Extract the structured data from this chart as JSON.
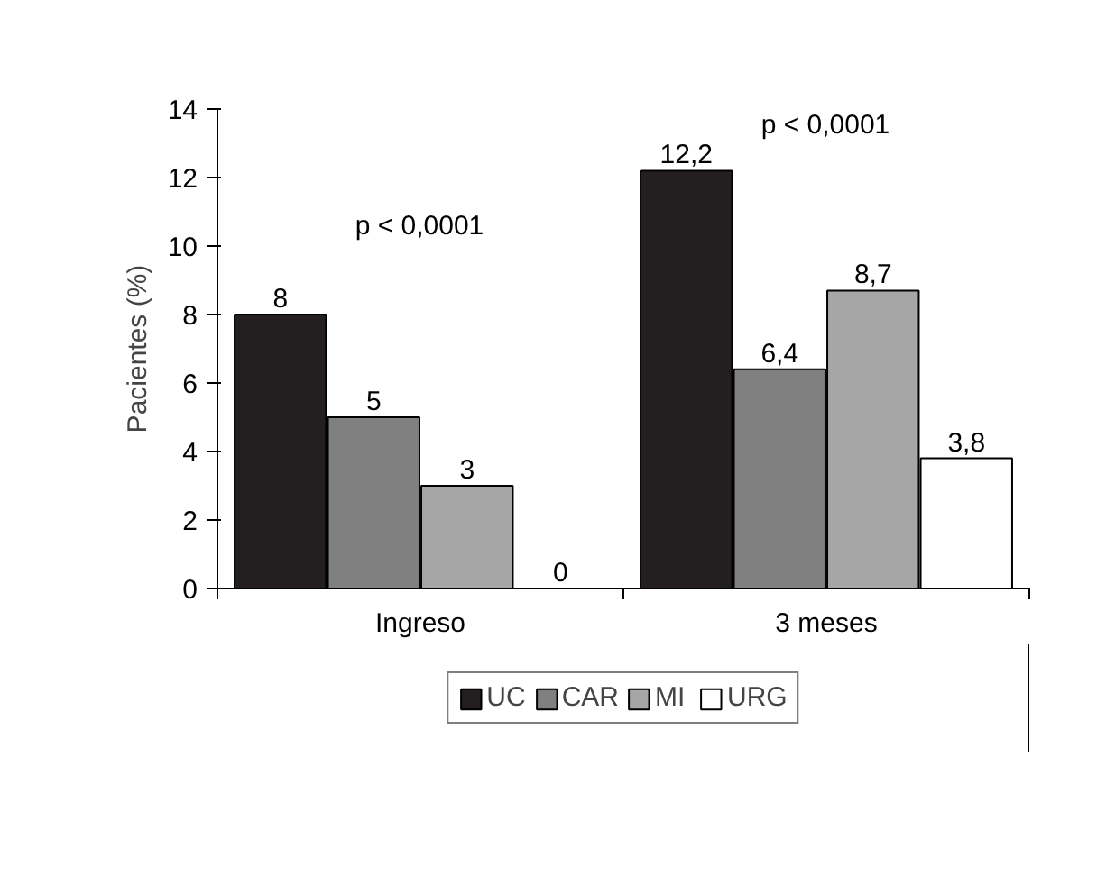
{
  "chart_data": {
    "type": "bar",
    "ylabel": "Pacientes (%)",
    "categories": [
      "Ingreso",
      "3 meses"
    ],
    "series": [
      {
        "name": "UC",
        "color": "#231f20",
        "values": [
          8,
          12.2
        ],
        "value_labels": [
          "8",
          "12,2"
        ]
      },
      {
        "name": "CAR",
        "color": "#808080",
        "values": [
          5,
          6.4
        ],
        "value_labels": [
          "5",
          "6,4"
        ]
      },
      {
        "name": "MI",
        "color": "#a6a6a6",
        "values": [
          3,
          8.7
        ],
        "value_labels": [
          "3",
          "8,7"
        ]
      },
      {
        "name": "URG",
        "color": "#ffffff",
        "values": [
          0,
          3.8
        ],
        "value_labels": [
          "0",
          "3,8"
        ]
      }
    ],
    "annotations": [
      "p < 0,0001",
      "p < 0,0001"
    ],
    "ylim": [
      0,
      14
    ],
    "yticks": [
      0,
      2,
      4,
      6,
      8,
      10,
      12,
      14
    ],
    "grid": false,
    "legend": "bottom"
  }
}
